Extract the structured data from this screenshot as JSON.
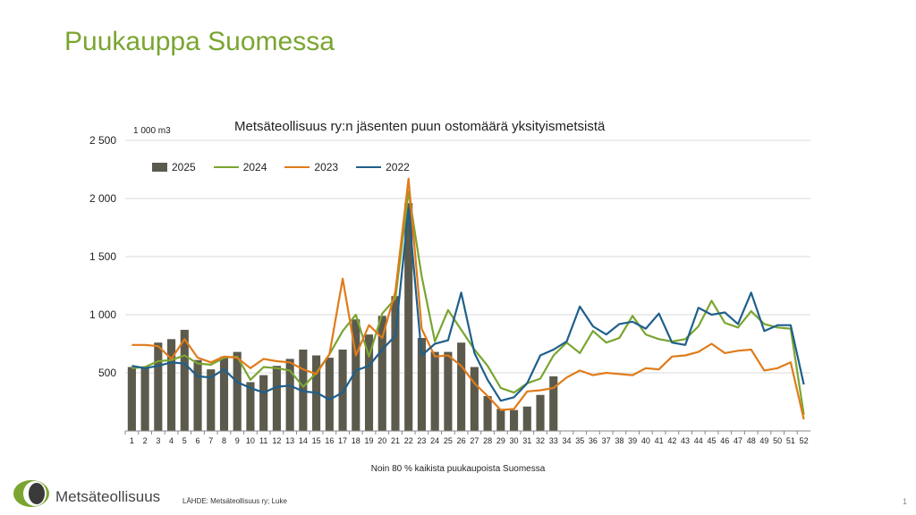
{
  "slide": {
    "title": "Puukauppa Suomessa",
    "caption": "Noin 80 % kaikista puukaupoista Suomessa",
    "source": "LÄHDE: Metsäteollisuus ry; Luke",
    "brand": "Metsäteollisuus",
    "page_number": "1"
  },
  "colors": {
    "title": "#7aa530",
    "bar_2025": "#5b5a4c",
    "line_2024": "#7aa530",
    "line_2023": "#e07b1a",
    "line_2022": "#1f5f8b",
    "grid": "#d9d9d9",
    "logo_green": "#7aa530",
    "logo_dark": "#3a3a3a"
  },
  "chart_data": {
    "type": "bar+line",
    "title": "Metsäteollisuus ry:n jäsenten puun ostomäärä yksityismetsistä",
    "unit": "1 000 m3",
    "ylim": [
      0,
      2500
    ],
    "yticks": [
      0,
      500,
      1000,
      1500,
      2000,
      2500
    ],
    "ytick_labels": [
      "",
      "500",
      "1 000",
      "1 500",
      "2 000",
      "2 500"
    ],
    "grid": true,
    "legend_position": "top-left",
    "categories": [
      "1",
      "2",
      "3",
      "4",
      "5",
      "6",
      "7",
      "8",
      "9",
      "10",
      "11",
      "12",
      "13",
      "14",
      "15",
      "16",
      "17",
      "18",
      "19",
      "20",
      "21",
      "22",
      "23",
      "24",
      "25",
      "26",
      "27",
      "28",
      "29",
      "30",
      "31",
      "32",
      "33",
      "34",
      "35",
      "36",
      "37",
      "38",
      "39",
      "40",
      "41",
      "42",
      "43",
      "44",
      "45",
      "46",
      "47",
      "48",
      "49",
      "50",
      "51",
      "52"
    ],
    "bars": {
      "name": "2025",
      "values": [
        550,
        550,
        760,
        790,
        870,
        610,
        530,
        640,
        680,
        420,
        480,
        560,
        620,
        700,
        650,
        630,
        700,
        960,
        830,
        990,
        1160,
        1960,
        800,
        680,
        680,
        760,
        550,
        300,
        190,
        180,
        210,
        310,
        470
      ]
    },
    "series": [
      {
        "name": "2024",
        "values": [
          540,
          550,
          600,
          610,
          650,
          580,
          570,
          630,
          640,
          440,
          550,
          540,
          520,
          380,
          500,
          660,
          860,
          1000,
          640,
          1010,
          1140,
          2060,
          1330,
          770,
          1040,
          870,
          700,
          560,
          370,
          330,
          410,
          450,
          650,
          760,
          670,
          860,
          760,
          800,
          990,
          830,
          790,
          770,
          790,
          900,
          1120,
          930,
          890,
          1030,
          920,
          890,
          880,
          140
        ]
      },
      {
        "name": "2023",
        "values": [
          740,
          740,
          730,
          620,
          790,
          630,
          590,
          640,
          630,
          540,
          620,
          600,
          590,
          530,
          490,
          660,
          1310,
          650,
          910,
          800,
          1200,
          2170,
          880,
          640,
          650,
          560,
          410,
          300,
          180,
          190,
          340,
          350,
          370,
          460,
          520,
          480,
          500,
          490,
          480,
          540,
          530,
          640,
          650,
          680,
          750,
          670,
          690,
          700,
          520,
          540,
          590,
          100
        ]
      },
      {
        "name": "2022",
        "values": [
          560,
          540,
          560,
          590,
          580,
          470,
          460,
          530,
          420,
          370,
          330,
          380,
          390,
          340,
          330,
          270,
          330,
          520,
          560,
          700,
          820,
          1910,
          650,
          750,
          780,
          1190,
          670,
          440,
          260,
          290,
          410,
          650,
          700,
          770,
          1070,
          900,
          830,
          920,
          940,
          880,
          1010,
          760,
          740,
          1060,
          1000,
          1020,
          920,
          1190,
          860,
          910,
          910,
          400
        ]
      }
    ]
  }
}
